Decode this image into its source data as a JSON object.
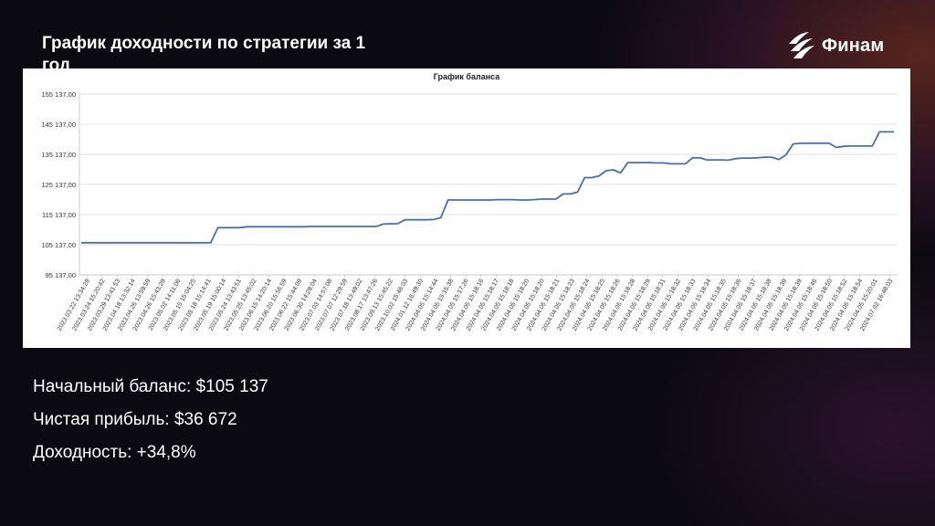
{
  "slide": {
    "title": "График доходности по стратегии за 1 год"
  },
  "logo": {
    "text": "Финам"
  },
  "stats": {
    "start_balance": "Начальный баланс: $105 137",
    "net_profit": "Чистая прибыль: $36 672",
    "return": "Доходность: +34,8%"
  },
  "chart_data": {
    "type": "line",
    "title": "График баланса",
    "xlabel": "",
    "ylabel": "",
    "ylim": [
      95137,
      155137
    ],
    "y_ticks": [
      "95 137,00",
      "105 137,00",
      "115 137,00",
      "125 137,00",
      "135 137,00",
      "145 137,00",
      "155 137,00"
    ],
    "y_tick_values": [
      95137,
      105137,
      115137,
      125137,
      135137,
      145137,
      155137
    ],
    "grid": true,
    "x_tick_labels": [
      "2023.03.22 13:34:28",
      "2023.03.24 15:20:42",
      "2023.03.29 13:41:53",
      "2023.04.18 13:32:14",
      "2023.04.26 13:59:59",
      "2023.04.26 15:43:29",
      "2023.05.02 14:11:06",
      "2023.05.15 15:04:25",
      "2023.05.18 15:14:41",
      "2023.05.19 15:00:14",
      "2023.05.24 13:43:51",
      "2023.05.25 13:45:02",
      "2023.06.15 14:20:14",
      "2023.06.20 15:56:59",
      "2023.06.22 15:44:09",
      "2023.06.30 14:28:04",
      "2023.07.03 14:57:08",
      "2023.07.07 12:29:59",
      "2023.07.18 13:49:02",
      "2023.08.17 13:47:26",
      "2023.09.13 15:45:22",
      "2023.10.02 15:46:03",
      "2024.01.12 16:49:30",
      "2024.04.05 15:14:44",
      "2024.04.05 15:15:38",
      "2024.04.05 15:17:26",
      "2024.04.05 15:18:16",
      "2024.04.05 15:18:17",
      "2024.04.05 15:18:18",
      "2024.04.05 15:18:20",
      "2024.04.05 15:18:20",
      "2024.04.05 15:18:21",
      "2024.04.05 15:18:23",
      "2024.04.05 15:18:24",
      "2024.04.05 15:18:25",
      "2024.04.05 15:18:26",
      "2024.04.05 15:18:28",
      "2024.04.05 15:18:29",
      "2024.04.05 15:18:31",
      "2024.04.05 15:18:32",
      "2024.04.05 15:18:33",
      "2024.04.05 15:18:34",
      "2024.04.05 15:18:35",
      "2024.04.05 15:18:36",
      "2024.04.05 15:18:37",
      "2024.04.05 15:18:38",
      "2024.04.05 15:18:39",
      "2024.04.05 15:18:39",
      "2024.04.05 15:18:46",
      "2024.04.05 15:18:50",
      "2024.04.05 15:18:52",
      "2024.04.05 15:18:54",
      "2024.04.05 15:20:01",
      "2024.07.02 16:48:03"
    ],
    "series": [
      {
        "color": "#4a6fa5",
        "values": [
          105800,
          105800,
          105800,
          105800,
          105800,
          105800,
          105800,
          105800,
          105800,
          105800,
          105800,
          105800,
          105800,
          105800,
          105800,
          105800,
          105800,
          105800,
          105800,
          110800,
          110800,
          110800,
          110800,
          111100,
          111100,
          111100,
          111100,
          111100,
          111100,
          111100,
          111100,
          111100,
          111200,
          111200,
          111200,
          111200,
          111200,
          111200,
          111200,
          111200,
          111200,
          111200,
          112000,
          112100,
          112100,
          113400,
          113400,
          113400,
          113400,
          113500,
          114100,
          120000,
          120000,
          120000,
          120000,
          120000,
          120000,
          120000,
          120100,
          120100,
          120100,
          120000,
          120000,
          120100,
          120300,
          120300,
          120300,
          122000,
          122000,
          122600,
          127400,
          127400,
          128000,
          129700,
          130000,
          129000,
          132400,
          132400,
          132400,
          132400,
          132300,
          132300,
          132000,
          132000,
          132000,
          134000,
          134000,
          133300,
          133300,
          133300,
          133200,
          133700,
          133900,
          133900,
          134000,
          134200,
          134200,
          133400,
          135000,
          138600,
          138800,
          138800,
          138800,
          138800,
          138800,
          137400,
          137800,
          137900,
          137900,
          137900,
          137900,
          142600,
          142600,
          142600
        ]
      }
    ]
  }
}
